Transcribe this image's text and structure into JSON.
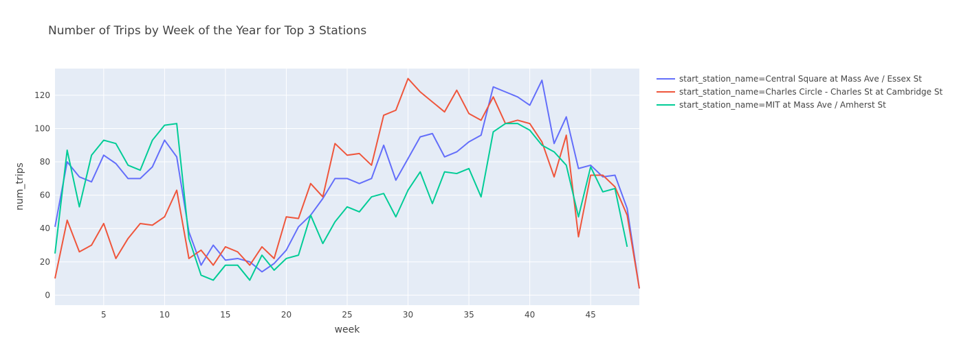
{
  "chart_data": {
    "type": "line",
    "title": "Number of Trips by Week of the Year for Top 3 Stations",
    "xlabel": "week",
    "ylabel": "num_trips",
    "xlim": [
      1,
      49
    ],
    "ylim": [
      -6,
      136
    ],
    "x_ticks": [
      5,
      10,
      15,
      20,
      25,
      30,
      35,
      40,
      45
    ],
    "y_ticks": [
      0,
      20,
      40,
      60,
      80,
      100,
      120
    ],
    "grid": true,
    "legend_position": "top-right",
    "x": [
      1,
      2,
      3,
      4,
      5,
      6,
      7,
      8,
      9,
      10,
      11,
      12,
      13,
      14,
      15,
      16,
      17,
      18,
      19,
      20,
      21,
      22,
      23,
      24,
      25,
      26,
      27,
      28,
      29,
      30,
      31,
      32,
      33,
      34,
      35,
      36,
      37,
      38,
      39,
      40,
      41,
      42,
      43,
      44,
      45,
      46,
      47,
      48,
      49
    ],
    "series": [
      {
        "name": "start_station_name=Central Square at Mass Ave / Essex St",
        "color": "#636efa",
        "values": [
          41,
          80,
          71,
          68,
          84,
          79,
          70,
          70,
          77,
          93,
          83,
          38,
          18,
          30,
          21,
          22,
          20,
          14,
          19,
          27,
          41,
          48,
          58,
          70,
          70,
          67,
          70,
          90,
          69,
          82,
          95,
          97,
          83,
          86,
          92,
          96,
          125,
          122,
          119,
          114,
          129,
          91,
          107,
          76,
          78,
          71,
          72,
          52,
          4
        ]
      },
      {
        "name": "start_station_name=Charles Circle - Charles St at Cambridge St",
        "color": "#ef553b",
        "values": [
          10,
          45,
          26,
          30,
          43,
          22,
          34,
          43,
          42,
          47,
          63,
          22,
          27,
          18,
          29,
          26,
          18,
          29,
          22,
          47,
          46,
          67,
          59,
          91,
          84,
          85,
          78,
          108,
          111,
          130,
          122,
          116,
          110,
          123,
          109,
          105,
          119,
          103,
          105,
          103,
          92,
          71,
          96,
          35,
          72,
          72,
          65,
          48,
          4
        ]
      },
      {
        "name": "start_station_name=MIT at Mass Ave / Amherst St",
        "color": "#00cc96",
        "values": [
          25,
          87,
          53,
          84,
          93,
          91,
          78,
          75,
          93,
          102,
          103,
          34,
          12,
          9,
          18,
          18,
          9,
          24,
          15,
          22,
          24,
          48,
          31,
          44,
          53,
          50,
          59,
          61,
          47,
          63,
          74,
          55,
          74,
          73,
          76,
          59,
          98,
          103,
          103,
          99,
          90,
          86,
          78,
          47,
          77,
          62,
          64,
          29,
          null
        ]
      }
    ]
  }
}
